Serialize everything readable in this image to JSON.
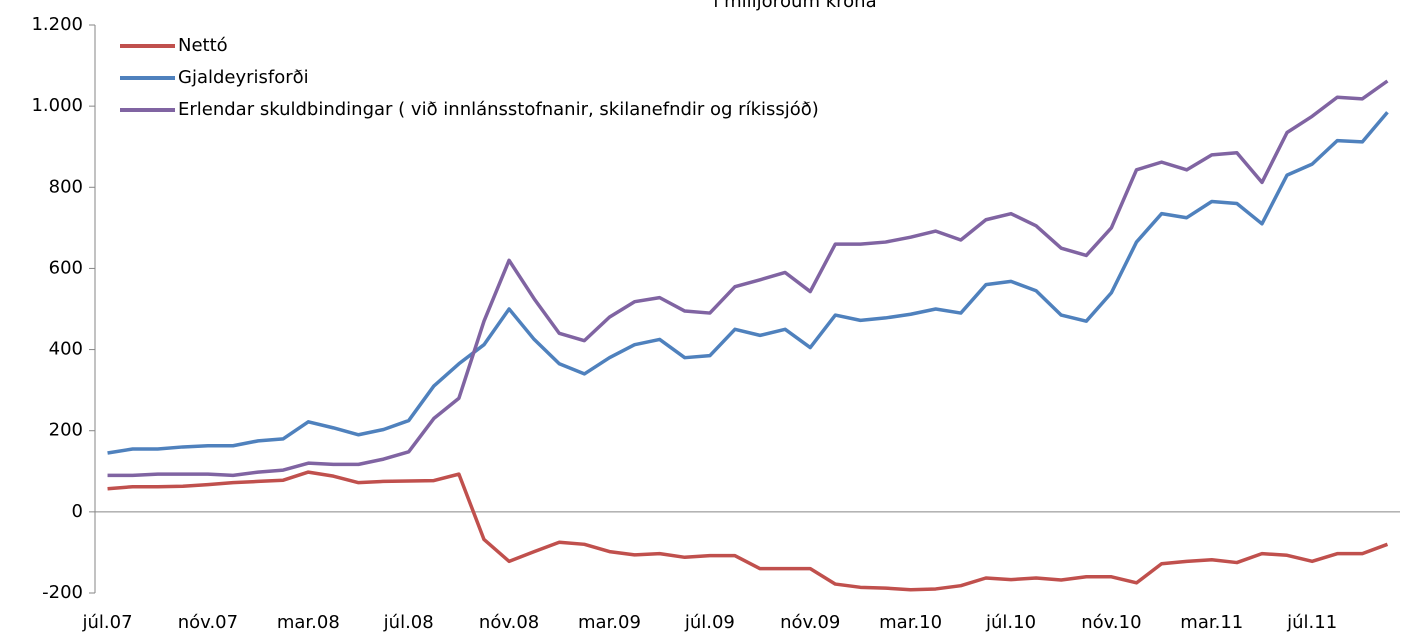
{
  "chart_data": {
    "type": "line",
    "title": "í milljörðum króna",
    "categories": [
      "júl.07",
      null,
      null,
      null,
      "nóv.07",
      null,
      null,
      null,
      "mar.08",
      null,
      null,
      null,
      "júl.08",
      null,
      null,
      null,
      "nóv.08",
      null,
      null,
      null,
      "mar.09",
      null,
      null,
      null,
      "júl.09",
      null,
      null,
      null,
      "nóv.09",
      null,
      null,
      null,
      "mar.10",
      null,
      null,
      null,
      "júl.10",
      null,
      null,
      null,
      "nóv.10",
      null,
      null,
      null,
      "mar.11",
      null,
      null,
      null,
      "júl.11",
      null,
      null,
      null
    ],
    "series": [
      {
        "name": "Nettó",
        "color": "#c0504d",
        "values": [
          57,
          62,
          62,
          63,
          67,
          72,
          75,
          78,
          98,
          88,
          72,
          75,
          76,
          77,
          93,
          -68,
          -122,
          -98,
          -75,
          -80,
          -98,
          -106,
          -103,
          -112,
          -108,
          -108,
          -140,
          -140,
          -140,
          -178,
          -186,
          -188,
          -192,
          -190,
          -182,
          -163,
          -167,
          -163,
          -168,
          -160,
          -160,
          -175,
          -128,
          -122,
          -118,
          -125,
          -103,
          -107,
          -122,
          -103,
          -103,
          -80
        ]
      },
      {
        "name": "Gjaldeyrisforði",
        "color": "#4f81bd",
        "values": [
          145,
          155,
          155,
          160,
          163,
          163,
          175,
          180,
          222,
          207,
          190,
          203,
          225,
          310,
          365,
          412,
          500,
          425,
          365,
          340,
          380,
          412,
          425,
          380,
          385,
          450,
          435,
          450,
          405,
          485,
          472,
          478,
          487,
          500,
          490,
          560,
          568,
          545,
          485,
          470,
          540,
          665,
          735,
          725,
          765,
          760,
          710,
          830,
          857,
          915,
          912,
          985
        ]
      },
      {
        "name": "Erlendar skuldbindingar ( við innlánsstofnanir, skilanefndir og ríkissjóð)",
        "color": "#8064a2",
        "values": [
          90,
          90,
          93,
          93,
          93,
          90,
          98,
          103,
          120,
          117,
          117,
          130,
          148,
          230,
          280,
          470,
          620,
          525,
          440,
          422,
          480,
          518,
          528,
          495,
          490,
          555,
          572,
          590,
          543,
          660,
          660,
          665,
          677,
          692,
          670,
          720,
          735,
          705,
          650,
          632,
          700,
          843,
          862,
          843,
          880,
          885,
          812,
          935,
          975,
          1022,
          1018,
          1062
        ]
      }
    ],
    "ylim": [
      -200,
      1200
    ],
    "yticks": [
      -200,
      0,
      200,
      400,
      600,
      800,
      {
        "value": 1000,
        "label": "1.000"
      },
      {
        "value": 1200,
        "label": "1.200"
      }
    ],
    "grid": false,
    "legend": "top-left"
  }
}
